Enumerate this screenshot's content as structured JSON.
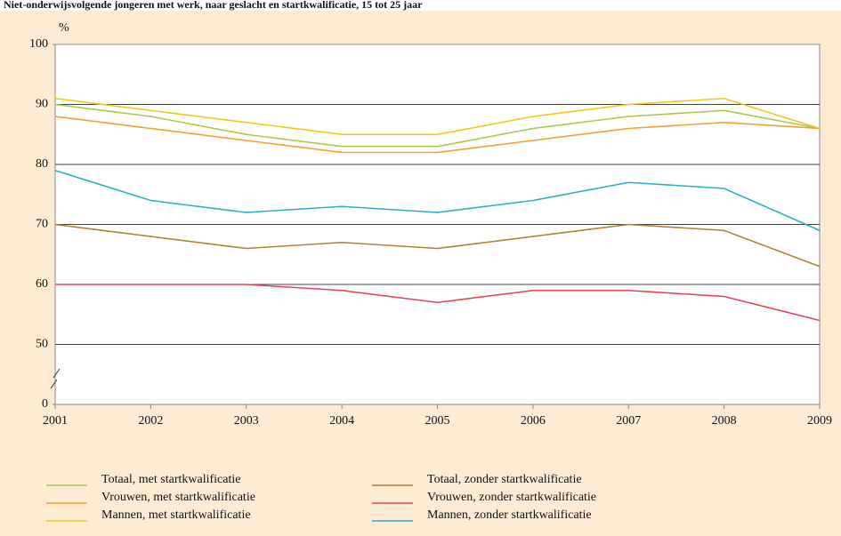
{
  "chart_data": {
    "type": "line",
    "title": "Niet-onderwijsvolgende jongeren met werk, naar geslacht en startkwalificatie, 15 tot 25 jaar",
    "y_label": "%",
    "x": [
      2001,
      2002,
      2003,
      2004,
      2005,
      2006,
      2007,
      2008,
      2009
    ],
    "xlim": [
      2001,
      2009
    ],
    "xticks": [
      2001,
      2002,
      2003,
      2004,
      2005,
      2006,
      2007,
      2008,
      2009
    ],
    "ylim": [
      40,
      100
    ],
    "yticks": [
      {
        "value": 40,
        "label": "0"
      },
      50,
      60,
      70,
      80,
      90,
      100
    ],
    "axis_break": true,
    "grid": true,
    "series": [
      {
        "name": "Totaal, met startkwalificatie",
        "color": "#a8c94a",
        "values": [
          90,
          88,
          85,
          83,
          83,
          86,
          88,
          89,
          86
        ]
      },
      {
        "name": "Vrouwen, met startkwalificatie",
        "color": "#f0a030",
        "values": [
          88,
          86,
          84,
          82,
          82,
          84,
          86,
          87,
          86
        ]
      },
      {
        "name": "Mannen, met startkwalificatie",
        "color": "#f5c518",
        "values": [
          91,
          89,
          87,
          85,
          85,
          88,
          90,
          91,
          86
        ]
      },
      {
        "name": "Totaal, zonder startkwalificatie",
        "color": "#b08030",
        "values": [
          70,
          68,
          66,
          67,
          66,
          68,
          70,
          69,
          63
        ]
      },
      {
        "name": "Vrouwen, zonder startkwalificatie",
        "color": "#e8405a",
        "values": [
          60,
          60,
          60,
          59,
          57,
          59,
          59,
          58,
          54
        ]
      },
      {
        "name": "Mannen, zonder startkwalificatie",
        "color": "#2ab0c0",
        "values": [
          79,
          74,
          72,
          73,
          72,
          74,
          77,
          76,
          69
        ]
      }
    ]
  }
}
